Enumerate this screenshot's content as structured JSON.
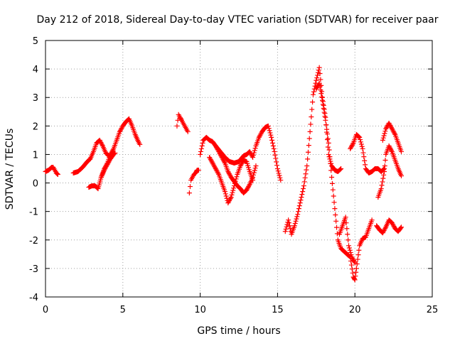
{
  "chart_data": {
    "type": "scatter",
    "title": "Day 212 of 2018, Sidereal Day-to-day VTEC variation (SDTVAR) for receiver paar",
    "xlabel": "GPS time / hours",
    "ylabel": "SDTVAR / TECUs",
    "xlim": [
      0,
      25
    ],
    "ylim": [
      -4,
      5
    ],
    "x_ticks": [
      0,
      5,
      10,
      15,
      20,
      25
    ],
    "x_tick_labels": [
      "0",
      "5",
      "10",
      "15",
      "20",
      "25"
    ],
    "y_ticks": [
      -4,
      -3,
      -2,
      -1,
      0,
      1,
      2,
      3,
      4,
      5
    ],
    "y_tick_labels": [
      "-4",
      "-3",
      "-2",
      "-1",
      "0",
      "1",
      "2",
      "3",
      "4",
      "5"
    ],
    "grid": true,
    "marker": "plus",
    "color": "#ff0000",
    "series": [
      {
        "name": "SDTVAR",
        "segments": [
          {
            "x": [
              0.0,
              0.2,
              0.4,
              0.5,
              0.6,
              0.7,
              0.8
            ],
            "y": [
              0.4,
              0.45,
              0.55,
              0.55,
              0.45,
              0.35,
              0.3
            ]
          },
          {
            "x": [
              1.8,
              2.1,
              2.4,
              2.7,
              2.9,
              3.1,
              3.3,
              3.5,
              3.7,
              3.9,
              4.1,
              4.3,
              4.5
            ],
            "y": [
              0.35,
              0.4,
              0.55,
              0.75,
              0.85,
              1.1,
              1.4,
              1.5,
              1.3,
              1.05,
              0.95,
              1.0,
              1.05
            ]
          },
          {
            "x": [
              2.8,
              3.0,
              3.2,
              3.4,
              3.5,
              3.6,
              3.8,
              4.0,
              4.2,
              4.4
            ],
            "y": [
              -0.15,
              -0.1,
              -0.1,
              -0.2,
              0.0,
              0.2,
              0.45,
              0.65,
              0.85,
              1.0
            ]
          },
          {
            "x": [
              3.6,
              3.8,
              4.0,
              4.2,
              4.4,
              4.6,
              4.8,
              5.0,
              5.2,
              5.4,
              5.6,
              5.8,
              6.0,
              6.1
            ],
            "y": [
              0.2,
              0.5,
              0.7,
              1.0,
              1.2,
              1.5,
              1.8,
              2.0,
              2.15,
              2.25,
              2.0,
              1.7,
              1.45,
              1.35
            ]
          },
          {
            "x": [
              8.5,
              8.6,
              8.7,
              8.8,
              8.9,
              9.0,
              9.1,
              9.2
            ],
            "y": [
              2.0,
              2.4,
              2.3,
              2.2,
              2.1,
              2.0,
              1.9,
              1.8
            ]
          },
          {
            "x": [
              9.3,
              9.4,
              9.5,
              9.6,
              9.7,
              9.8,
              9.9
            ],
            "y": [
              -0.35,
              0.1,
              0.2,
              0.3,
              0.35,
              0.45,
              0.45
            ]
          },
          {
            "x": [
              10.0,
              10.2,
              10.4,
              10.6,
              10.8,
              11.0,
              11.2,
              11.4,
              11.6,
              11.8,
              12.0,
              12.2,
              12.4,
              12.6,
              12.8,
              13.0,
              13.2,
              13.4,
              13.6
            ],
            "y": [
              1.0,
              1.5,
              1.6,
              1.5,
              1.45,
              1.3,
              1.1,
              0.9,
              0.7,
              0.4,
              0.2,
              0.05,
              -0.1,
              -0.2,
              -0.35,
              -0.25,
              -0.05,
              0.2,
              0.6
            ]
          },
          {
            "x": [
              10.6,
              10.8,
              11.0,
              11.2,
              11.4,
              11.6,
              11.8,
              12.0,
              12.2,
              12.4,
              12.6,
              12.8,
              13.0,
              13.2,
              13.4
            ],
            "y": [
              0.9,
              0.7,
              0.5,
              0.3,
              0.0,
              -0.3,
              -0.7,
              -0.5,
              -0.1,
              0.3,
              0.6,
              0.8,
              0.75,
              0.4,
              0.1
            ]
          },
          {
            "x": [
              11.0,
              11.3,
              11.6,
              11.9,
              12.2,
              12.5,
              12.8,
              13.0,
              13.2,
              13.4,
              13.6,
              13.8,
              14.0,
              14.2,
              14.4,
              14.6,
              14.8,
              15.0,
              15.2
            ],
            "y": [
              1.3,
              1.1,
              0.9,
              0.75,
              0.7,
              0.75,
              0.95,
              1.0,
              1.1,
              0.9,
              1.3,
              1.6,
              1.8,
              1.95,
              2.0,
              1.6,
              1.1,
              0.5,
              0.1
            ]
          },
          {
            "x": [
              15.5,
              15.7,
              15.9,
              16.1,
              16.3,
              16.5,
              16.7,
              16.9,
              17.1,
              17.3,
              17.5,
              17.7,
              17.9,
              18.1,
              18.3,
              18.5,
              18.7,
              18.9,
              19.1
            ],
            "y": [
              -1.7,
              -1.3,
              -1.8,
              -1.5,
              -1.1,
              -0.6,
              -0.1,
              0.6,
              1.8,
              3.1,
              3.6,
              4.05,
              3.0,
              2.3,
              1.0,
              0.6,
              0.45,
              0.4,
              0.5
            ]
          },
          {
            "x": [
              17.5,
              17.7,
              17.9,
              18.1,
              18.3,
              18.5,
              18.7,
              18.9,
              19.1,
              19.3,
              19.5,
              19.7,
              19.9,
              20.0,
              20.1,
              20.3,
              20.5,
              20.7,
              20.9,
              21.1
            ],
            "y": [
              3.3,
              3.5,
              2.9,
              2.2,
              1.4,
              0.2,
              -0.9,
              -2.0,
              -2.3,
              -2.4,
              -2.5,
              -2.6,
              -3.3,
              -3.4,
              -3.0,
              -2.2,
              -1.95,
              -1.9,
              -1.6,
              -1.3
            ]
          },
          {
            "x": [
              19.0,
              19.2,
              19.4,
              19.6,
              19.8,
              20.0
            ],
            "y": [
              -1.8,
              -1.5,
              -1.2,
              -2.2,
              -2.6,
              -2.8
            ]
          },
          {
            "x": [
              19.7,
              19.9,
              20.1,
              20.3,
              20.5,
              20.7,
              20.9,
              21.1,
              21.3,
              21.5,
              21.7,
              21.9
            ],
            "y": [
              1.2,
              1.4,
              1.7,
              1.6,
              1.2,
              0.5,
              0.35,
              0.4,
              0.5,
              0.5,
              0.4,
              0.5
            ]
          },
          {
            "x": [
              21.4,
              21.6,
              21.8,
              22.0,
              22.2,
              22.4,
              22.6,
              22.8,
              23.0
            ],
            "y": [
              -1.5,
              -1.65,
              -1.75,
              -1.55,
              -1.3,
              -1.4,
              -1.6,
              -1.7,
              -1.55
            ]
          },
          {
            "x": [
              21.5,
              21.7,
              21.9,
              22.0,
              22.2,
              22.4,
              22.6,
              22.8,
              23.0
            ],
            "y": [
              -0.5,
              -0.2,
              0.4,
              1.0,
              1.3,
              1.1,
              0.8,
              0.5,
              0.25
            ]
          },
          {
            "x": [
              21.8,
              22.0,
              22.2,
              22.4,
              22.6,
              22.8,
              23.0
            ],
            "y": [
              1.5,
              1.9,
              2.1,
              1.9,
              1.7,
              1.4,
              1.1
            ]
          }
        ]
      }
    ]
  }
}
